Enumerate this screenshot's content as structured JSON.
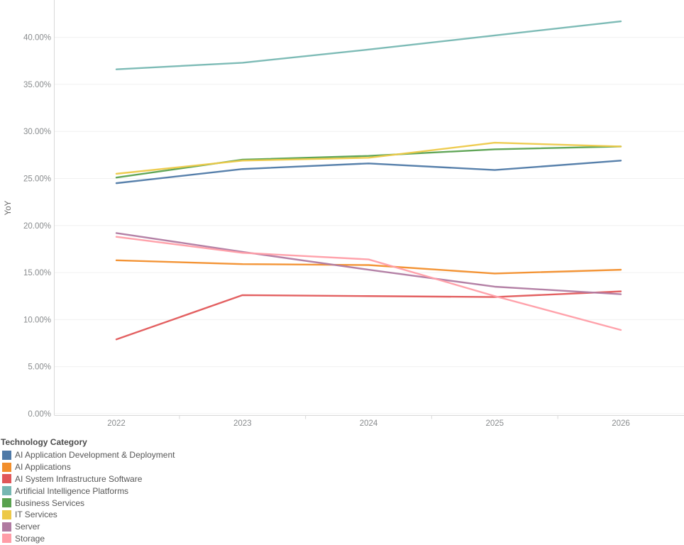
{
  "axes": {
    "ylabel": "YoY",
    "y_tick_labels": [
      "0.00%",
      "5.00%",
      "10.00%",
      "15.00%",
      "20.00%",
      "25.00%",
      "30.00%",
      "35.00%",
      "40.00%"
    ],
    "x_tick_labels": [
      "2022",
      "2023",
      "2024",
      "2025",
      "2026"
    ]
  },
  "legend": {
    "title": "Technology Category"
  },
  "chart_data": {
    "type": "line",
    "title": "",
    "xlabel": "",
    "ylabel": "YoY",
    "x": [
      "2022",
      "2023",
      "2024",
      "2025",
      "2026"
    ],
    "ylim": [
      0,
      43
    ],
    "y_tick_step": 5,
    "y_ticks": [
      "0.00%",
      "5.00%",
      "10.00%",
      "15.00%",
      "20.00%",
      "25.00%",
      "30.00%",
      "35.00%",
      "40.00%"
    ],
    "grid": true,
    "legend_position": "bottom-left",
    "legend_title": "Technology Category",
    "series": [
      {
        "name": "AI Application Development & Deployment",
        "color": "#4e79a7",
        "values": [
          24.5,
          26.0,
          26.6,
          25.9,
          26.9
        ]
      },
      {
        "name": "AI Applications",
        "color": "#f28e2b",
        "values": [
          16.3,
          15.9,
          15.8,
          14.9,
          15.3
        ]
      },
      {
        "name": "AI System Infrastructure Software",
        "color": "#e15759",
        "values": [
          7.9,
          12.6,
          12.5,
          12.4,
          13.0
        ]
      },
      {
        "name": "Artificial Intelligence Platforms",
        "color": "#76b7b2",
        "values": [
          36.6,
          37.3,
          38.7,
          40.2,
          41.7
        ]
      },
      {
        "name": "Business Services",
        "color": "#59a14f",
        "values": [
          25.1,
          27.0,
          27.4,
          28.1,
          28.4
        ]
      },
      {
        "name": "IT Services",
        "color": "#edc948",
        "values": [
          25.5,
          26.9,
          27.2,
          28.8,
          28.4
        ]
      },
      {
        "name": "Server",
        "color": "#b07aa1",
        "values": [
          19.2,
          17.2,
          15.3,
          13.5,
          12.7
        ]
      },
      {
        "name": "Storage",
        "color": "#ff9da7",
        "values": [
          18.8,
          17.1,
          16.4,
          12.5,
          8.9
        ]
      }
    ]
  }
}
